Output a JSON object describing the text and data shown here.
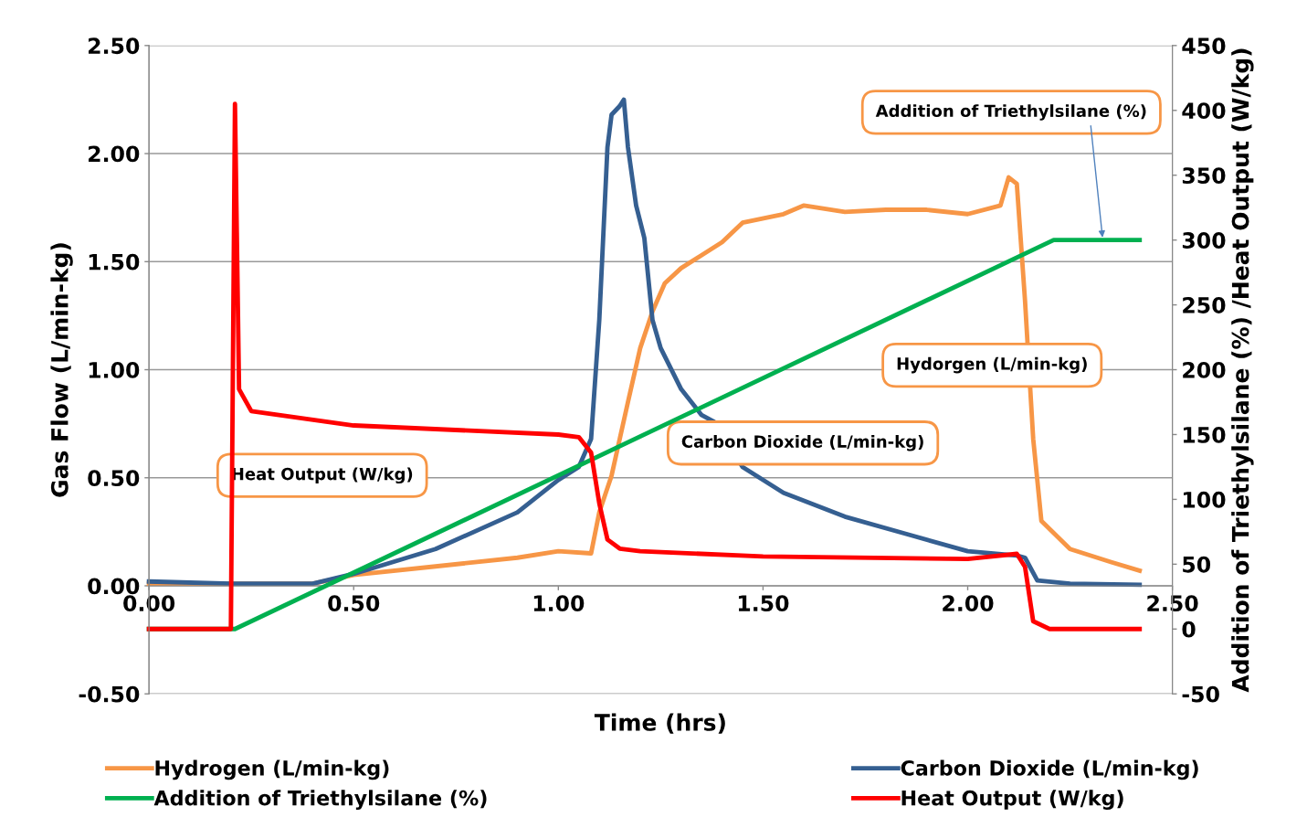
{
  "chart_data": {
    "type": "line",
    "xlabel": "Time (hrs)",
    "ylabel": "Gas Flow (L/min-kg)",
    "y2label": "Addition of Triethylsilane (%) /Heat Output (W/kg)",
    "xlim": [
      0,
      2.5
    ],
    "xticks": [
      {
        "value": 0,
        "label": "0.00"
      },
      {
        "value": 0.5,
        "label": "0.50"
      },
      {
        "value": 1,
        "label": "1.00"
      },
      {
        "value": 1.5,
        "label": "1.50"
      },
      {
        "value": 2,
        "label": "2.00"
      },
      {
        "value": 2.5,
        "label": "2.50"
      }
    ],
    "ylim": [
      -0.5,
      2.5
    ],
    "yticks": [
      {
        "value": -0.5,
        "label": "-0.50"
      },
      {
        "value": 0,
        "label": "0.00"
      },
      {
        "value": 0.5,
        "label": "0.50"
      },
      {
        "value": 1,
        "label": "1.00"
      },
      {
        "value": 1.5,
        "label": "1.50"
      },
      {
        "value": 2,
        "label": "2.00"
      },
      {
        "value": 2.5,
        "label": "2.50"
      }
    ],
    "y2lim": [
      -50,
      450
    ],
    "y2ticks": [
      -50,
      0,
      50,
      100,
      150,
      200,
      250,
      300,
      350,
      400,
      450
    ],
    "grid": "y",
    "legend": "bottom",
    "marker": "none",
    "line_style": "solid",
    "series": [
      {
        "name": "Hydrogen (L/min-kg)",
        "color": "#f79646",
        "x": [
          0,
          0.2,
          0.4,
          0.5,
          0.7,
          0.9,
          1.0,
          1.08,
          1.1,
          1.13,
          1.17,
          1.2,
          1.23,
          1.26,
          1.3,
          1.35,
          1.4,
          1.45,
          1.55,
          1.6,
          1.7,
          1.8,
          1.9,
          2.0,
          2.08,
          2.1,
          2.12,
          2.14,
          2.16,
          2.18,
          2.25,
          2.35,
          2.42
        ],
        "values": [
          0.01,
          0.01,
          0.01,
          0.05,
          0.09,
          0.13,
          0.16,
          0.15,
          0.34,
          0.51,
          0.85,
          1.1,
          1.27,
          1.4,
          1.47,
          1.53,
          1.59,
          1.68,
          1.72,
          1.76,
          1.73,
          1.74,
          1.74,
          1.72,
          1.76,
          1.89,
          1.86,
          1.32,
          0.68,
          0.3,
          0.17,
          0.11,
          0.07
        ]
      },
      {
        "name": "Carbon Dioxide (L/min-kg)",
        "color": "#355f91",
        "x": [
          0,
          0.2,
          0.4,
          0.5,
          0.7,
          0.9,
          1.0,
          1.05,
          1.08,
          1.1,
          1.12,
          1.13,
          1.15,
          1.16,
          1.17,
          1.19,
          1.21,
          1.23,
          1.25,
          1.3,
          1.35,
          1.38,
          1.45,
          1.55,
          1.7,
          1.85,
          2.0,
          2.12,
          2.14,
          2.17,
          2.25,
          2.42
        ],
        "values": [
          0.02,
          0.01,
          0.01,
          0.055,
          0.17,
          0.34,
          0.49,
          0.55,
          0.68,
          1.23,
          2.03,
          2.18,
          2.22,
          2.25,
          2.03,
          1.76,
          1.61,
          1.23,
          1.1,
          0.91,
          0.79,
          0.76,
          0.55,
          0.43,
          0.32,
          0.24,
          0.16,
          0.14,
          0.13,
          0.025,
          0.01,
          0.005
        ]
      },
      {
        "name": "Addition of Triethylsilane (%)",
        "color": "#00b050",
        "axis": "y2",
        "x": [
          0,
          0.21,
          2.21,
          2.42
        ],
        "values": [
          0,
          0,
          300,
          300
        ]
      },
      {
        "name": "Heat Output (W/kg)",
        "color": "#ff0000",
        "axis": "y2",
        "x": [
          0,
          0.2,
          0.21,
          0.22,
          0.25,
          0.5,
          1.0,
          1.05,
          1.08,
          1.1,
          1.12,
          1.15,
          1.2,
          1.5,
          2.0,
          2.12,
          2.14,
          2.16,
          2.2,
          2.42
        ],
        "values": [
          0,
          0,
          405,
          185,
          168,
          157,
          150,
          148,
          136,
          97,
          69,
          62,
          60,
          56,
          54,
          58,
          48,
          6,
          0,
          0
        ]
      }
    ],
    "annotations": [
      "Heat Output (W/kg)",
      "Carbon Dioxide (L/min-kg)",
      "Hydorgen (L/min-kg)",
      "Addition of Triethylsilane (%)"
    ]
  }
}
